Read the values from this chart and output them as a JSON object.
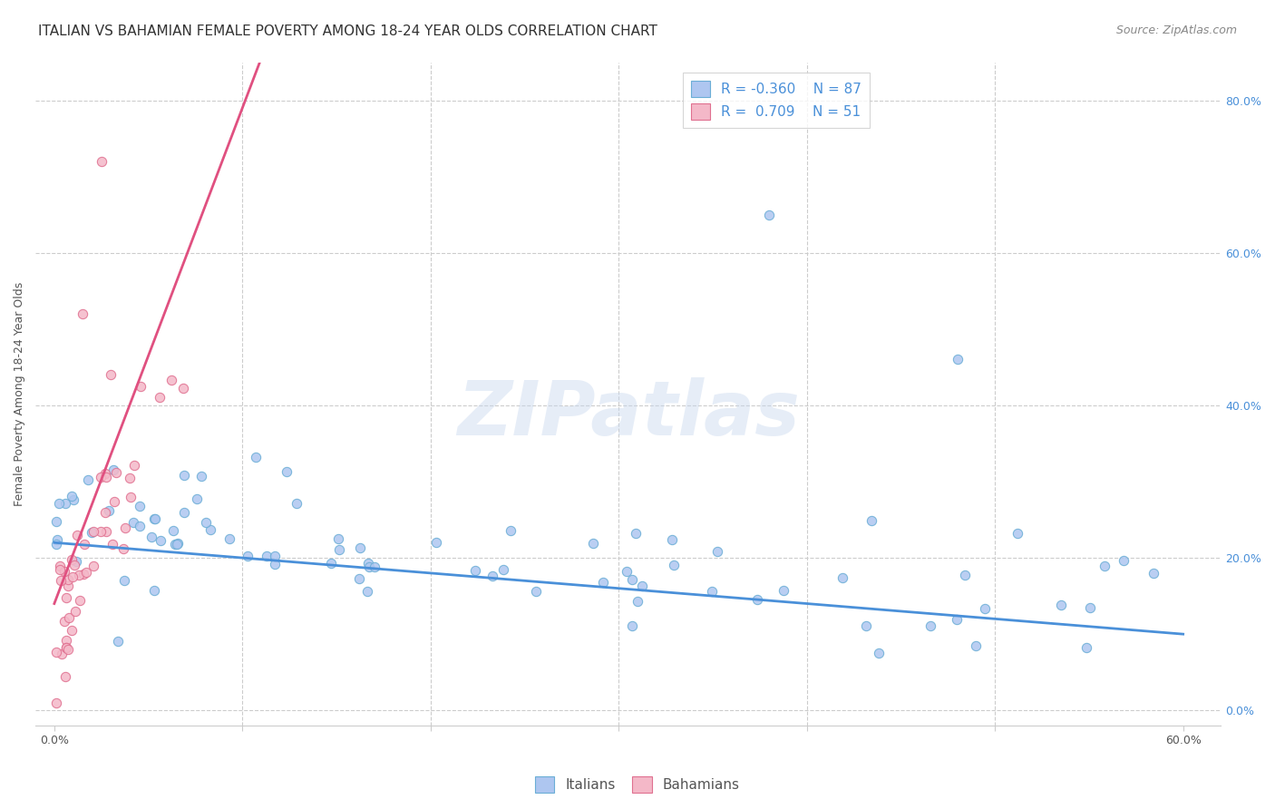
{
  "title": "ITALIAN VS BAHAMIAN FEMALE POVERTY AMONG 18-24 YEAR OLDS CORRELATION CHART",
  "source": "Source: ZipAtlas.com",
  "ylabel": "Female Poverty Among 18-24 Year Olds",
  "watermark": "ZIPatlas",
  "xlim": [
    -1.0,
    62.0
  ],
  "ylim": [
    -2.0,
    85.0
  ],
  "xtick_positions": [
    0,
    10,
    20,
    30,
    40,
    50,
    60
  ],
  "xtick_labels_show": [
    "0.0%",
    "",
    "",
    "",
    "",
    "",
    "60.0%"
  ],
  "ytick_positions": [
    0,
    20,
    40,
    60,
    80
  ],
  "ytick_labels_right": [
    "0.0%",
    "20.0%",
    "40.0%",
    "60.0%",
    "80.0%"
  ],
  "italian_color": "#aec6f0",
  "italian_edge": "#6baed6",
  "bahamian_color": "#f4b8c8",
  "bahamian_edge": "#e07090",
  "italian_line_color": "#4a90d9",
  "bahamian_line_color": "#e05080",
  "R_italian": -0.36,
  "N_italian": 87,
  "R_bahamian": 0.709,
  "N_bahamian": 51,
  "legend_label_italian": "Italians",
  "legend_label_bahamian": "Bahamians",
  "title_fontsize": 11,
  "axis_fontsize": 9,
  "tick_fontsize": 9,
  "legend_fontsize": 11,
  "source_fontsize": 9,
  "grid_color": "#cccccc",
  "background_color": "#ffffff"
}
